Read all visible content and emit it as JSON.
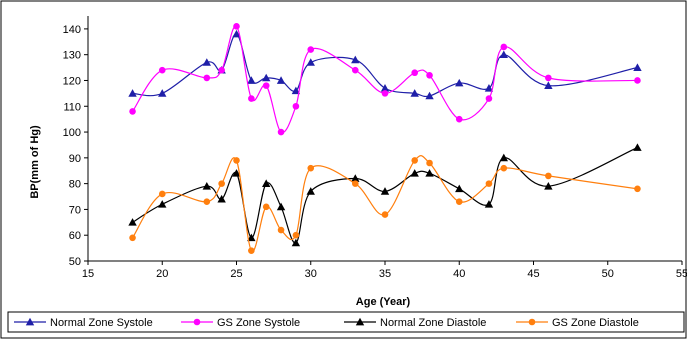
{
  "chart_data": {
    "type": "line",
    "title": "",
    "xlabel": "Age (Year)",
    "ylabel": "BP(mm of Hg)",
    "xlim": [
      15,
      55
    ],
    "ylim": [
      50,
      145
    ],
    "x_ticks": [
      15,
      20,
      25,
      30,
      35,
      40,
      45,
      50,
      55
    ],
    "y_ticks": [
      50,
      60,
      70,
      80,
      90,
      100,
      110,
      120,
      130,
      140
    ],
    "x_tick_labels": [
      "15",
      "20",
      "25",
      "30",
      "35",
      "40",
      "45",
      "50",
      "55"
    ],
    "y_tick_labels": [
      "50",
      "60",
      "70",
      "80",
      "90",
      "100",
      "110",
      "120",
      "130",
      "140"
    ],
    "grid": false,
    "legend_position": "bottom",
    "series": [
      {
        "name": "Normal Zone Systole",
        "color": "#1f1fa8",
        "marker": "triangle",
        "x": [
          18,
          20,
          23,
          24,
          25,
          26,
          27,
          28,
          29,
          30,
          33,
          35,
          37,
          38,
          40,
          42,
          43,
          46,
          52
        ],
        "y": [
          115,
          115,
          127,
          124,
          138,
          120,
          121,
          120,
          116,
          127,
          128,
          117,
          115,
          114,
          119,
          117,
          130,
          118,
          125
        ]
      },
      {
        "name": "GS Zone Systole",
        "color": "#ff00ff",
        "marker": "circle",
        "x": [
          18,
          20,
          23,
          24,
          25,
          26,
          27,
          28,
          29,
          30,
          33,
          35,
          37,
          38,
          40,
          42,
          43,
          46,
          52
        ],
        "y": [
          108,
          124,
          121,
          124,
          141,
          113,
          118,
          100,
          110,
          132,
          124,
          115,
          123,
          122,
          105,
          113,
          133,
          121,
          120
        ]
      },
      {
        "name": "Normal Zone Diastole",
        "color": "#000000",
        "marker": "triangle",
        "x": [
          18,
          20,
          23,
          24,
          25,
          26,
          27,
          28,
          29,
          30,
          33,
          35,
          37,
          38,
          40,
          42,
          43,
          46,
          52
        ],
        "y": [
          65,
          72,
          79,
          74,
          84,
          59,
          80,
          71,
          57,
          77,
          82,
          77,
          84,
          84,
          78,
          72,
          90,
          79,
          94
        ]
      },
      {
        "name": "GS Zone Diastole",
        "color": "#ff7f0e",
        "marker": "circle",
        "x": [
          18,
          20,
          23,
          24,
          25,
          26,
          27,
          28,
          29,
          30,
          33,
          35,
          37,
          38,
          40,
          42,
          43,
          46,
          52
        ],
        "y": [
          59,
          76,
          73,
          80,
          89,
          54,
          71,
          62,
          60,
          86,
          80,
          68,
          89,
          88,
          73,
          80,
          86,
          83,
          78
        ]
      }
    ]
  }
}
